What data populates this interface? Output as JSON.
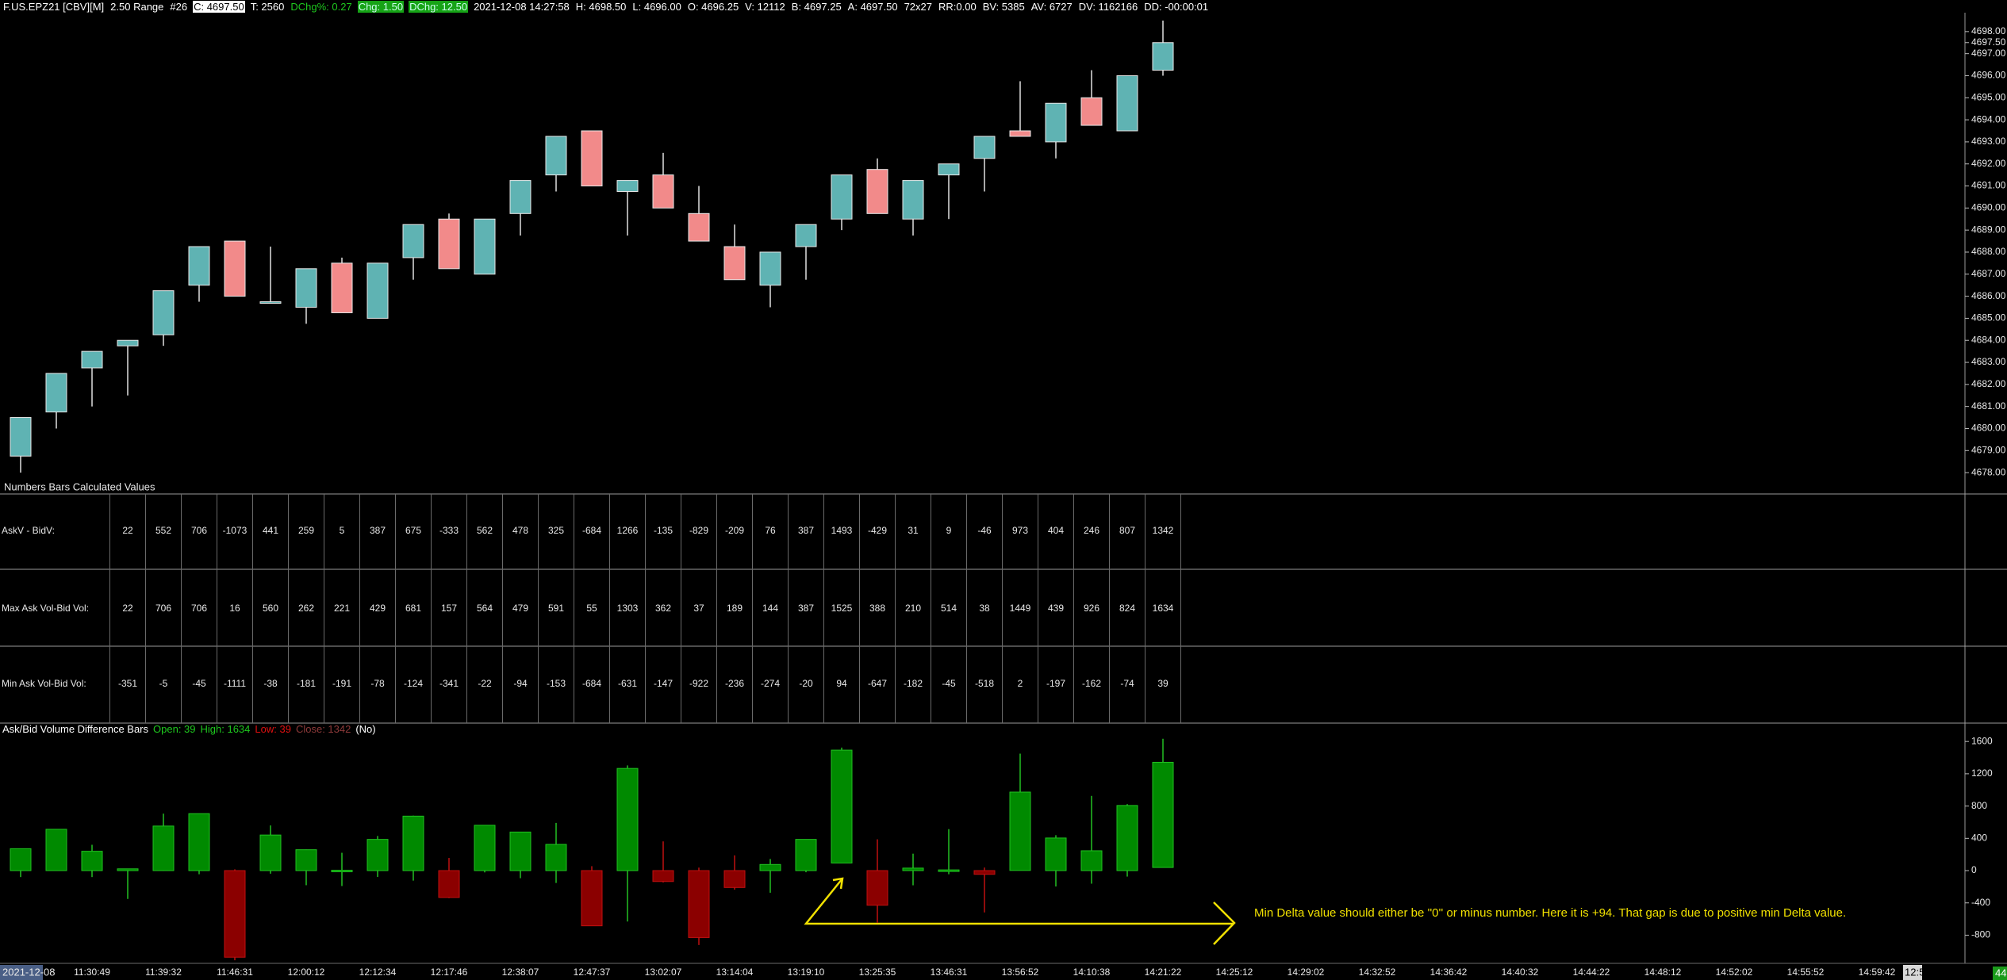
{
  "header": {
    "segments": [
      "F.US.EPZ21 [CBV][M]",
      "2.50 Range",
      "#26",
      "C: 4697.50",
      "T: 2560",
      "DChg%: 0.27",
      "Chg: 1.50",
      "DChg: 12.50",
      "2021-12-08 14:27:58",
      "H: 4698.50",
      "L: 4696.00",
      "O: 4696.25",
      "V: 12112",
      "B: 4697.25",
      "A: 4697.50",
      "72x27",
      "RR:0.00",
      "BV: 5385",
      "AV: 6727",
      "DV: 1162166",
      "DD: -00:00:01"
    ]
  },
  "chart_data": [
    {
      "type": "candlestick",
      "up_color": "#5fb3b3",
      "down_color": "#f28a8a",
      "outline_color": "#e8e8e8",
      "wick_color": "#e0e0e0",
      "open": [
        4678.75,
        4680.75,
        4682.75,
        4683.75,
        4684.25,
        4686.5,
        4688.5,
        4685.75,
        4685.5,
        4687.5,
        4685,
        4687.75,
        4689.5,
        4687,
        4689.75,
        4691.5,
        4693.5,
        4690.75,
        4691.5,
        4689.75,
        4688.25,
        4686.5,
        4688.25,
        4689.5,
        4691.75,
        4689.5,
        4691.5,
        4692.25,
        4693.5,
        4693,
        4695,
        4693.5,
        4696.25
      ],
      "high": [
        4680.5,
        4682.5,
        4683.5,
        4684,
        4686.25,
        4688.25,
        4688.5,
        4688.25,
        4687.25,
        4687.75,
        4687.5,
        4689.25,
        4689.75,
        4689.5,
        4691.25,
        4693.25,
        4693.5,
        4691.25,
        4692.5,
        4691,
        4689.25,
        4688,
        4689.25,
        4691.5,
        4692.25,
        4691.25,
        4692,
        4693.25,
        4695.75,
        4694.75,
        4696.25,
        4696,
        4698.5
      ],
      "low": [
        4678,
        4680,
        4681,
        4681.5,
        4683.75,
        4685.75,
        4686,
        4685.75,
        4684.75,
        4685.25,
        4685,
        4686.75,
        4687.25,
        4687,
        4688.75,
        4690.75,
        4691,
        4688.75,
        4690,
        4688.5,
        4686.75,
        4685.5,
        4686.75,
        4689,
        4689.75,
        4688.75,
        4689.5,
        4690.75,
        4693.25,
        4692.25,
        4693.75,
        4693.5,
        4696
      ],
      "close": [
        4680.5,
        4682.5,
        4683.5,
        4684,
        4686.25,
        4688.25,
        4686,
        4685.75,
        4687.25,
        4685.25,
        4687.5,
        4689.25,
        4687.25,
        4689.5,
        4691.25,
        4693.25,
        4691,
        4691.25,
        4690,
        4688.5,
        4686.75,
        4688,
        4689.25,
        4691.5,
        4689.75,
        4691.25,
        4692,
        4693.25,
        4693.25,
        4694.75,
        4693.75,
        4696,
        4697.5
      ],
      "ylim": [
        4677.5,
        4698.75
      ],
      "yticks": [
        {
          "value": 4678,
          "label": "4678.00"
        },
        {
          "value": 4679,
          "label": "4679.00"
        },
        {
          "value": 4680,
          "label": "4680.00"
        },
        {
          "value": 4681,
          "label": "4681.00"
        },
        {
          "value": 4682,
          "label": "4682.00"
        },
        {
          "value": 4683,
          "label": "4683.00"
        },
        {
          "value": 4684,
          "label": "4684.00"
        },
        {
          "value": 4685,
          "label": "4685.00"
        },
        {
          "value": 4686,
          "label": "4686.00"
        },
        {
          "value": 4687,
          "label": "4687.00"
        },
        {
          "value": 4688,
          "label": "4688.00"
        },
        {
          "value": 4689,
          "label": "4689.00"
        },
        {
          "value": 4690,
          "label": "4690.00"
        },
        {
          "value": 4691,
          "label": "4691.00"
        },
        {
          "value": 4692,
          "label": "4692.00"
        },
        {
          "value": 4693,
          "label": "4693.00"
        },
        {
          "value": 4694,
          "label": "4694.00"
        },
        {
          "value": 4695,
          "label": "4695.00"
        },
        {
          "value": 4696,
          "label": "4696.00"
        },
        {
          "value": 4697,
          "label": "4697.00"
        },
        {
          "value": 4697.5,
          "label": "4697.50"
        },
        {
          "value": 4698,
          "label": "4698.00"
        }
      ]
    },
    {
      "type": "candlestick",
      "title": "Ask/Bid Volume Difference Bars",
      "legend": [
        "Open: 39",
        "High: 1634",
        "Low: 39",
        "Close: 1342",
        "(No)"
      ],
      "up_color": "#008a00",
      "down_color": "#8b0000",
      "outline_color": "#22c022",
      "open": [
        0,
        0,
        0,
        0,
        0,
        0,
        0,
        0,
        0,
        0,
        0,
        0,
        0,
        0,
        0,
        0,
        0,
        0,
        0,
        0,
        0,
        0,
        0,
        94,
        0,
        0,
        0,
        0,
        2,
        0,
        0,
        0,
        39
      ],
      "high": [
        272,
        512,
        320,
        22,
        706,
        706,
        16,
        560,
        262,
        221,
        429,
        681,
        157,
        564,
        479,
        591,
        55,
        1303,
        362,
        37,
        189,
        144,
        387,
        1525,
        388,
        210,
        514,
        38,
        1449,
        439,
        926,
        824,
        1634
      ],
      "low": [
        -80,
        0,
        -80,
        -351,
        -5,
        -45,
        -1111,
        -38,
        -181,
        -191,
        -78,
        -124,
        -341,
        -22,
        -94,
        -153,
        -684,
        -631,
        -147,
        -922,
        -236,
        -274,
        -20,
        94,
        -647,
        -182,
        -45,
        -518,
        2,
        -197,
        -162,
        -74,
        39
      ],
      "close": [
        272,
        512,
        240,
        22,
        552,
        706,
        -1073,
        441,
        259,
        5,
        387,
        675,
        -333,
        562,
        478,
        325,
        -684,
        1266,
        -135,
        -829,
        -209,
        76,
        387,
        1493,
        -429,
        31,
        9,
        -46,
        973,
        404,
        246,
        807,
        1342
      ],
      "ylim": [
        -1100,
        1700
      ],
      "yticks": [
        1600,
        1200,
        800,
        400,
        0,
        -400,
        -800
      ]
    }
  ],
  "table": {
    "title": "Numbers Bars Calculated Values",
    "rows": [
      {
        "label": "AskV - BidV:",
        "values": [
          22,
          552,
          706,
          -1073,
          441,
          259,
          5,
          387,
          675,
          -333,
          562,
          478,
          325,
          -684,
          1266,
          -135,
          -829,
          -209,
          76,
          387,
          1493,
          -429,
          31,
          9,
          -46,
          973,
          404,
          246,
          807,
          1342
        ]
      },
      {
        "label": "Max Ask Vol-Bid Vol:",
        "values": [
          22,
          706,
          706,
          16,
          560,
          262,
          221,
          429,
          681,
          157,
          564,
          479,
          591,
          55,
          1303,
          362,
          37,
          189,
          144,
          387,
          1525,
          388,
          210,
          514,
          38,
          1449,
          439,
          926,
          824,
          1634
        ]
      },
      {
        "label": "Min Ask Vol-Bid Vol:",
        "values": [
          -351,
          -5,
          -45,
          -1111,
          -38,
          -181,
          -191,
          -78,
          -124,
          -341,
          -22,
          -94,
          -153,
          -684,
          -631,
          -147,
          -922,
          -236,
          -274,
          -20,
          94,
          -647,
          -182,
          -45,
          -518,
          2,
          -197,
          -162,
          -74,
          39
        ]
      }
    ]
  },
  "annotation": {
    "text": "Min Delta value should either be ''0'' or minus number. Here it is +94. That gap is due to positive min Delta value."
  },
  "time_axis": {
    "date": "2021-12-08",
    "labels": [
      "11:30:49",
      "11:39:32",
      "11:46:31",
      "12:00:12",
      "12:12:34",
      "12:17:46",
      "12:38:07",
      "12:47:37",
      "13:02:07",
      "13:14:04",
      "13:19:10",
      "13:25:35",
      "13:46:31",
      "13:56:52",
      "14:10:38",
      "14:21:22",
      "14:25:12",
      "14:29:02",
      "14:32:52",
      "14:36:42",
      "14:40:32",
      "14:44:22",
      "14:48:12",
      "14:52:02",
      "14:55:52",
      "14:59:42"
    ],
    "cursor_label": "12:5",
    "corner_label": "44"
  }
}
